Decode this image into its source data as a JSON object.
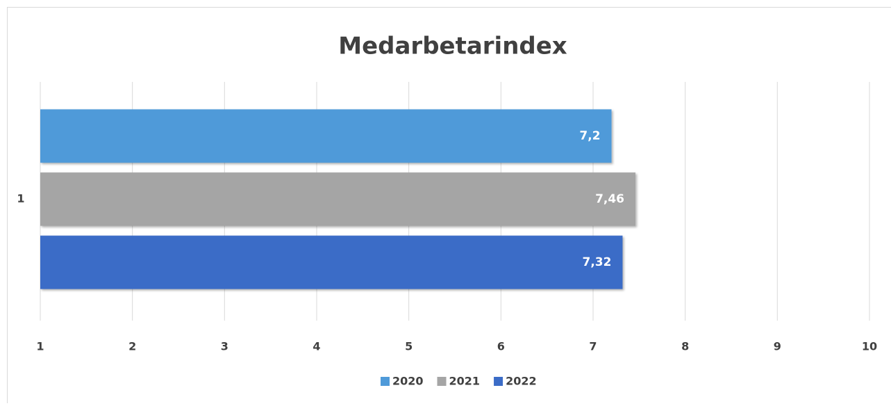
{
  "chart_data": {
    "type": "hbar",
    "title": "Medarbetarindex",
    "categories": [
      "1"
    ],
    "series": [
      {
        "name": "2020",
        "color": "#4f9ad9",
        "values": [
          7.2
        ],
        "value_labels": [
          "7,2"
        ]
      },
      {
        "name": "2021",
        "color": "#a5a5a5",
        "values": [
          7.46
        ],
        "value_labels": [
          "7,46"
        ]
      },
      {
        "name": "2022",
        "color": "#3b6cc7",
        "values": [
          7.32
        ],
        "value_labels": [
          "7,32"
        ]
      }
    ],
    "xlim": [
      1,
      10
    ],
    "xticks": [
      1,
      2,
      3,
      4,
      5,
      6,
      7,
      8,
      9,
      10
    ],
    "grid": true,
    "legend": "bottom"
  }
}
